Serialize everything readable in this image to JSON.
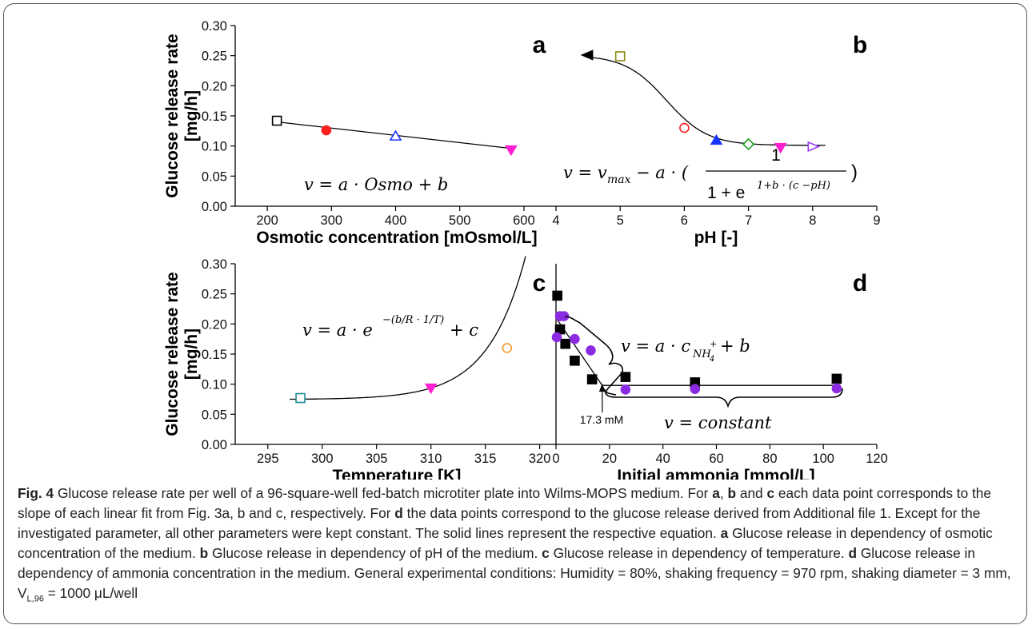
{
  "colors": {
    "black": "#000000",
    "red": "#ff1f1f",
    "blue": "#1a34ff",
    "magenta": "#ff1fd2",
    "olive": "#8c8a12",
    "green": "#1a9a1a",
    "violet": "#9a3cf5",
    "teal": "#1c8b92",
    "orange": "#f29a2e",
    "purple": "#8a2be2"
  },
  "shared_ylabel": [
    "Glucose release rate",
    "[mg/h]"
  ],
  "chart_data": [
    {
      "panel": "a",
      "type": "scatter",
      "xlabel": "Osmotic concentration   [mOsmol/L]",
      "ylabel": "Glucose release rate [mg/h]",
      "xlim": [
        150,
        650
      ],
      "ylim": [
        0,
        0.3
      ],
      "xticks": [
        "200",
        "300",
        "400",
        "500",
        "600"
      ],
      "yticks": [
        "0.00",
        "0.05",
        "0.10",
        "0.15",
        "0.20",
        "0.25",
        "0.30"
      ],
      "equation": "v = a · Osmo + b",
      "points": [
        {
          "x": 215,
          "y": 0.142,
          "marker": "square-open",
          "color": "#000000"
        },
        {
          "x": 292,
          "y": 0.126,
          "marker": "circle-filled",
          "color": "#ff1f1f"
        },
        {
          "x": 400,
          "y": 0.116,
          "marker": "triangle-open",
          "color": "#1a34ff"
        },
        {
          "x": 580,
          "y": 0.094,
          "marker": "triangle-down-filled",
          "color": "#ff1fd2"
        }
      ],
      "fit_line": [
        [
          215,
          0.14
        ],
        [
          580,
          0.096
        ]
      ]
    },
    {
      "panel": "b",
      "type": "scatter",
      "xlabel": "pH   [-]",
      "xlim": [
        4,
        9
      ],
      "ylim": [
        0,
        0.3
      ],
      "xticks": [
        "4",
        "5",
        "6",
        "7",
        "8",
        "9"
      ],
      "equation": "v = v_max − a · ( 1 / (1 + e^(1+b·(c−pH))) )",
      "points": [
        {
          "x": 4.5,
          "y": 0.251,
          "marker": "triangle-left-filled",
          "color": "#000000"
        },
        {
          "x": 5.0,
          "y": 0.249,
          "marker": "square-open",
          "color": "#8c8a12"
        },
        {
          "x": 6.0,
          "y": 0.13,
          "marker": "circle-open",
          "color": "#ff1f1f"
        },
        {
          "x": 6.5,
          "y": 0.109,
          "marker": "triangle-filled",
          "color": "#1a34ff"
        },
        {
          "x": 7.0,
          "y": 0.103,
          "marker": "diamond-open",
          "color": "#1a9a1a"
        },
        {
          "x": 7.5,
          "y": 0.098,
          "marker": "triangle-down-filled",
          "color": "#ff1fd2"
        },
        {
          "x": 8.0,
          "y": 0.099,
          "marker": "triangle-right-open",
          "color": "#9a3cf5"
        }
      ],
      "fit": {
        "vmax": 0.251,
        "amp": 0.15,
        "mid": 5.72,
        "k": 3.1,
        "xmin": 4.5,
        "xmax": 8.2
      }
    },
    {
      "panel": "c",
      "type": "scatter",
      "xlabel": "Temperature   [K]",
      "ylabel": "Glucose release rate [mg/h]",
      "xlim": [
        292,
        321.5
      ],
      "ylim": [
        0,
        0.3
      ],
      "xticks": [
        "295",
        "300",
        "305",
        "310",
        "315",
        "320"
      ],
      "yticks": [
        "0.00",
        "0.05",
        "0.10",
        "0.15",
        "0.20",
        "0.25",
        "0.30"
      ],
      "equation": "v = a · e^−(b/R · 1/T) + c",
      "points": [
        {
          "x": 298,
          "y": 0.077,
          "marker": "square-open",
          "color": "#1c8b92"
        },
        {
          "x": 310,
          "y": 0.094,
          "marker": "triangle-down-filled",
          "color": "#ff1fd2"
        },
        {
          "x": 317,
          "y": 0.16,
          "marker": "circle-open",
          "color": "#f29a2e"
        }
      ],
      "fit": {
        "xmin": 297,
        "xmax": 318.7,
        "base": 0.0745,
        "scale": 0.00105,
        "rate": 0.29
      }
    },
    {
      "panel": "d",
      "type": "scatter",
      "xlabel": "Initial ammonia   [mmol/L]",
      "xlim": [
        0,
        120
      ],
      "ylim": [
        0,
        0.3
      ],
      "xticks": [
        "0",
        "20",
        "40",
        "60",
        "80",
        "100",
        "120"
      ],
      "equation_top": "v = a · c_NH4+ + b",
      "equation_bottom": "v = constant",
      "annotation": "17.3 mM",
      "series": [
        {
          "marker": "square-filled",
          "color": "#000000",
          "x": [
            0.5,
            1.5,
            3.5,
            7,
            13.5,
            26,
            52,
            105
          ],
          "y": [
            0.247,
            0.191,
            0.167,
            0.139,
            0.108,
            0.112,
            0.103,
            0.109
          ]
        },
        {
          "marker": "circle-filled",
          "color": "#8a2be2",
          "x": [
            0.3,
            1.5,
            3,
            7,
            13,
            26,
            52,
            105
          ],
          "y": [
            0.178,
            0.213,
            0.213,
            0.175,
            0.156,
            0.091,
            0.092,
            0.093
          ]
        }
      ],
      "fit_line": [
        [
          0,
          0.21
        ],
        [
          17.3,
          0.098
        ],
        [
          105,
          0.098
        ]
      ]
    }
  ],
  "caption": {
    "figlabel": "Fig. 4",
    "segments": [
      {
        "b": false,
        "t": " Glucose release rate per well of a 96-square-well fed-batch microtiter plate into Wilms-MOPS medium. For "
      },
      {
        "b": true,
        "t": "a"
      },
      {
        "b": false,
        "t": ", "
      },
      {
        "b": true,
        "t": "b"
      },
      {
        "b": false,
        "t": " and "
      },
      {
        "b": true,
        "t": "c"
      },
      {
        "b": false,
        "t": " each data point corresponds to the slope of each linear fit from Fig. 3a, b and c, respectively. For "
      },
      {
        "b": true,
        "t": "d"
      },
      {
        "b": false,
        "t": " the data points correspond to the glucose release derived from Additional file 1. Except for the investigated parameter, all other parameters were kept constant. The solid lines represent the respective equation. "
      },
      {
        "b": true,
        "t": "a"
      },
      {
        "b": false,
        "t": " Glucose release in dependency of osmotic concentration of the medium. "
      },
      {
        "b": true,
        "t": "b"
      },
      {
        "b": false,
        "t": " Glucose release in dependency of pH of the medium. "
      },
      {
        "b": true,
        "t": "c"
      },
      {
        "b": false,
        "t": " Glucose release in dependency of temperature. "
      },
      {
        "b": true,
        "t": "d"
      },
      {
        "b": false,
        "t": " Glucose release in dependency of ammonia concentration in the medium. General experimental conditions: Humidity = 80%, shaking frequency = 970 rpm, shaking diameter = 3 mm, V"
      },
      {
        "b": false,
        "sub": true,
        "t": "L,96"
      },
      {
        "b": false,
        "t": " = 1000 μL/well"
      }
    ]
  }
}
